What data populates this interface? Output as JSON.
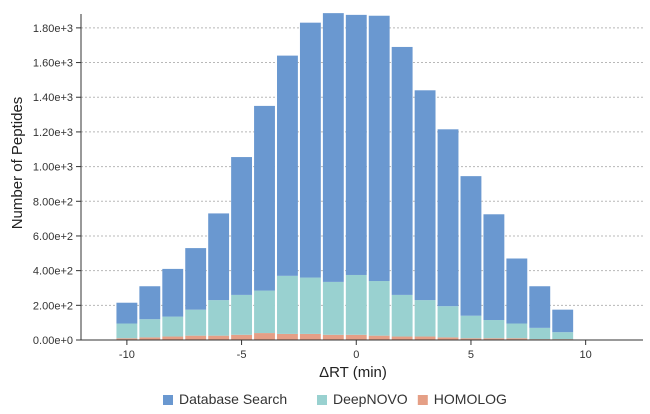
{
  "chart_data": {
    "type": "bar",
    "stacked": true,
    "xlabel": "ΔRT (min)",
    "ylabel": "Number of Peptides",
    "xlim": [
      -12,
      12.5
    ],
    "ylim": [
      0,
      1880
    ],
    "x_ticks": [
      -10,
      -5,
      0,
      5,
      10
    ],
    "x_tick_labels": [
      "-10",
      "-5",
      "0",
      "5",
      "10"
    ],
    "y_ticks": [
      0,
      200,
      400,
      600,
      800,
      1000,
      1200,
      1400,
      1600,
      1800
    ],
    "y_tick_labels": [
      "0.00e+0",
      "2.00e+2",
      "4.00e+2",
      "6.00e+2",
      "8.00e+2",
      "1.00e+3",
      "1.20e+3",
      "1.40e+3",
      "1.60e+3",
      "1.80e+3"
    ],
    "grid": true,
    "legend_position": "bottom",
    "bin_width": 1,
    "bin_centers": [
      -10,
      -9,
      -8,
      -7,
      -6,
      -5,
      -4,
      -3,
      -2,
      -1,
      0,
      1,
      2,
      3,
      4,
      5,
      6,
      7,
      8,
      9
    ],
    "series": [
      {
        "name": "HOMOLOG",
        "color": "#e59f86",
        "values": [
          10,
          15,
          20,
          25,
          25,
          30,
          40,
          35,
          35,
          30,
          30,
          25,
          20,
          20,
          15,
          10,
          10,
          10,
          5,
          5
        ]
      },
      {
        "name": "DeepNOVO",
        "color": "#99d1d0",
        "values": [
          85,
          105,
          115,
          150,
          205,
          230,
          245,
          335,
          325,
          305,
          345,
          315,
          240,
          210,
          180,
          130,
          105,
          85,
          65,
          40
        ]
      },
      {
        "name": "Database Search",
        "color": "#6a98d0",
        "values": [
          120,
          190,
          275,
          355,
          500,
          795,
          1065,
          1270,
          1470,
          1550,
          1500,
          1530,
          1430,
          1210,
          1020,
          805,
          610,
          375,
          240,
          130
        ]
      }
    ],
    "legend_order": [
      "Database Search",
      "DeepNOVO",
      "HOMOLOG"
    ]
  }
}
